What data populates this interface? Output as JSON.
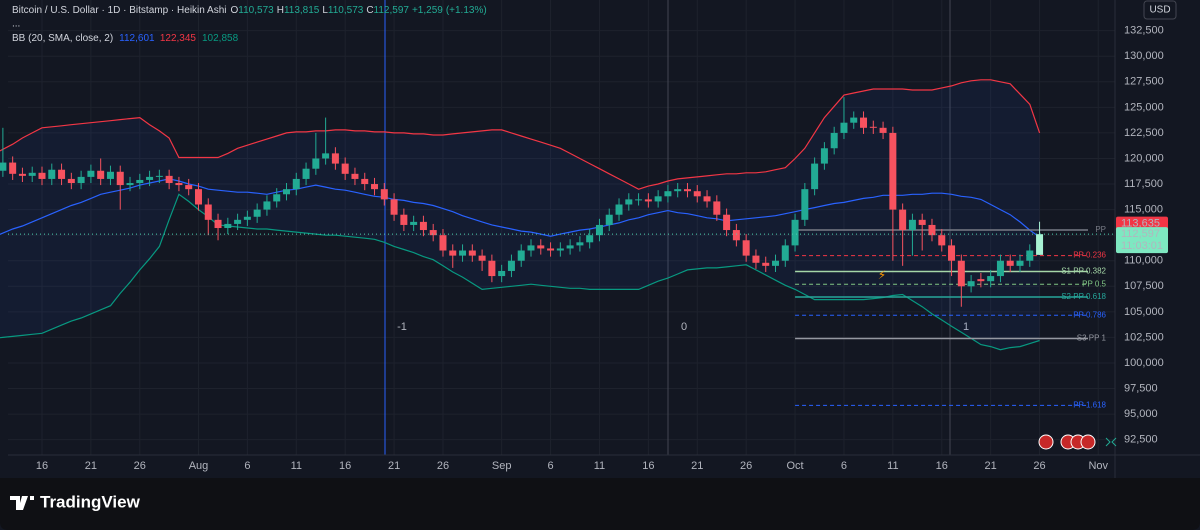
{
  "chart_data": {
    "type": "candlestick",
    "title": "Bitcoin / U.S. Dollar · 1D · Bitstamp · Heikin Ashi",
    "ohlc": [
      {
        "key": "O",
        "value": 110573,
        "label": "110,573"
      },
      {
        "key": "H",
        "value": 113815,
        "label": "113,815"
      },
      {
        "key": "L",
        "value": 110573,
        "label": "110,573"
      },
      {
        "key": "C",
        "value": 112597,
        "label": "112,597"
      }
    ],
    "change": {
      "value": 1259,
      "label": "+1,259"
    },
    "change_pct": {
      "value": 1.13,
      "label": "(+1.13%)"
    },
    "more": "...",
    "currency": "USD",
    "categories": [
      null,
      null,
      null,
      null,
      null,
      "16",
      null,
      null,
      null,
      null,
      "21",
      null,
      null,
      null,
      null,
      "26",
      null,
      null,
      null,
      null,
      null,
      "Aug",
      null,
      null,
      null,
      null,
      "6",
      null,
      null,
      null,
      null,
      "11",
      null,
      null,
      null,
      null,
      "16",
      null,
      null,
      null,
      null,
      "21",
      null,
      null,
      null,
      null,
      "26",
      null,
      null,
      null,
      null,
      null,
      "Sep",
      null,
      null,
      null,
      null,
      "6",
      null,
      null,
      null,
      null,
      "11",
      null,
      null,
      null,
      null,
      "16",
      null,
      null,
      null,
      null,
      "21",
      null,
      null,
      null,
      null,
      "26",
      null,
      null,
      null,
      null,
      "Oct",
      null,
      null,
      null,
      null,
      "6",
      null,
      null,
      null,
      null,
      "11",
      null,
      null,
      null,
      null,
      "16",
      null,
      null,
      null,
      null,
      "21",
      null,
      null,
      null,
      null,
      "26",
      null,
      null,
      null,
      null,
      null,
      "Nov"
    ],
    "open": [
      117500,
      118800,
      119600,
      118500,
      118300,
      118600,
      118000,
      118900,
      118000,
      117600,
      118200,
      118800,
      118000,
      118700,
      117400,
      117600,
      117900,
      118200,
      118300,
      117600,
      117400,
      117000,
      115500,
      114000,
      113200,
      113600,
      114000,
      114300,
      115000,
      115800,
      116500,
      117000,
      118000,
      119000,
      120000,
      120500,
      119500,
      118500,
      118000,
      117500,
      117000,
      116000,
      114500,
      113500,
      113800,
      113000,
      112500,
      111000,
      110500,
      111000,
      110500,
      110000,
      108500,
      109000,
      110000,
      111000,
      111500,
      111200,
      111000,
      111200,
      111500,
      111800,
      112500,
      113500,
      114500,
      115500,
      116000,
      116000,
      115800,
      116300,
      116800,
      117000,
      116800,
      116300,
      115800,
      114500,
      113000,
      112000,
      110500,
      109800,
      109500,
      110000,
      111500,
      114000,
      117000,
      119500,
      121000,
      122500,
      123500,
      124000,
      123100,
      123000,
      122500,
      115000,
      113000,
      114000,
      113500,
      112500,
      111500,
      110000,
      107500,
      108200,
      108000,
      108500,
      110000,
      109500,
      110000,
      110573,
      null,
      null,
      null,
      null,
      null,
      null
    ],
    "high": [
      119500,
      123000,
      120200,
      119100,
      119200,
      119200,
      119500,
      119500,
      118600,
      118800,
      119400,
      120000,
      119300,
      119300,
      118200,
      118500,
      118800,
      118900,
      118900,
      118200,
      118000,
      117600,
      116100,
      114600,
      114200,
      114600,
      114900,
      115600,
      116400,
      117100,
      117600,
      118600,
      119600,
      122500,
      124000,
      121100,
      120100,
      119100,
      118600,
      118100,
      117600,
      116600,
      115100,
      114400,
      114400,
      113600,
      113100,
      111600,
      111600,
      111600,
      111100,
      110600,
      109600,
      110600,
      111600,
      112100,
      112100,
      111800,
      111800,
      112100,
      112400,
      113100,
      114100,
      115100,
      116100,
      116600,
      116600,
      116600,
      116900,
      117400,
      117600,
      117600,
      117400,
      116900,
      116400,
      115100,
      113600,
      112600,
      111100,
      110400,
      110600,
      112100,
      114600,
      117600,
      120100,
      121600,
      123100,
      126000,
      124600,
      124600,
      123700,
      123600,
      123100,
      115600,
      114600,
      114600,
      114100,
      113100,
      112100,
      110600,
      108600,
      108800,
      109100,
      110600,
      110600,
      110600,
      111600,
      113815,
      null,
      null,
      null,
      null,
      null,
      null
    ],
    "low": [
      116900,
      118200,
      117900,
      117700,
      117700,
      117400,
      117400,
      117400,
      117000,
      117000,
      117600,
      117400,
      117400,
      115000,
      116800,
      117000,
      117300,
      117600,
      117000,
      116800,
      116400,
      114900,
      112500,
      112000,
      112600,
      113000,
      113400,
      113700,
      114400,
      115200,
      115900,
      116400,
      117400,
      118400,
      119400,
      118900,
      117900,
      117400,
      116900,
      116400,
      115400,
      113900,
      112900,
      112900,
      112400,
      111900,
      110400,
      109300,
      109900,
      109900,
      109000,
      107900,
      107900,
      108400,
      109400,
      110400,
      110600,
      110400,
      110400,
      110600,
      110900,
      111200,
      111900,
      112900,
      113900,
      114900,
      115400,
      115200,
      115200,
      115700,
      116200,
      116200,
      115700,
      115200,
      113900,
      112400,
      111400,
      109900,
      109200,
      108900,
      108900,
      109400,
      110900,
      113400,
      116400,
      118900,
      120400,
      121900,
      122900,
      122400,
      122400,
      121900,
      110000,
      109500,
      110500,
      111000,
      111900,
      110900,
      108500,
      105500,
      106900,
      107400,
      107400,
      107900,
      108900,
      108900,
      109400,
      110573,
      null,
      null,
      null,
      null,
      null,
      null
    ],
    "close": [
      118800,
      119600,
      118500,
      118300,
      118600,
      118000,
      118900,
      118000,
      117600,
      118200,
      118800,
      118000,
      118700,
      117400,
      117600,
      117900,
      118200,
      118300,
      117600,
      117400,
      117000,
      115500,
      114000,
      113200,
      113600,
      114000,
      114300,
      115000,
      115800,
      116500,
      117000,
      118000,
      119000,
      120000,
      120500,
      119500,
      118500,
      118000,
      117500,
      117000,
      116000,
      114500,
      113500,
      113800,
      113000,
      112500,
      111000,
      110500,
      111000,
      110500,
      110000,
      108500,
      109000,
      110000,
      111000,
      111500,
      111200,
      111000,
      111200,
      111500,
      111800,
      112500,
      113500,
      114500,
      115500,
      116000,
      116000,
      115800,
      116300,
      116800,
      117000,
      116800,
      116300,
      115800,
      114500,
      113000,
      112000,
      110500,
      109800,
      109500,
      110000,
      111500,
      114000,
      117000,
      119500,
      121000,
      122500,
      123500,
      124000,
      123000,
      123000,
      122500,
      115000,
      113000,
      114000,
      113500,
      112500,
      111500,
      110000,
      107500,
      108000,
      108000,
      108500,
      110000,
      109500,
      110000,
      111000,
      112597,
      null,
      null,
      null,
      null,
      null,
      null
    ],
    "up_color": "#22ab94",
    "down_color": "#f7525f",
    "current_bar_color": "#a8f2d4",
    "indicator": {
      "name": "BB (20, SMA, close, 2)",
      "fill_color": "#2962ff",
      "series": [
        {
          "color": "#2962ff",
          "legend": {
            "value": 112601,
            "label": "112,601"
          },
          "values": [
            112300,
            112700,
            113100,
            113400,
            113800,
            114200,
            114600,
            115000,
            115400,
            115700,
            116100,
            116500,
            116700,
            116900,
            117100,
            117400,
            117600,
            117800,
            118000,
            117800,
            117500,
            117300,
            117000,
            116900,
            116800,
            116700,
            116700,
            116600,
            116500,
            116700,
            116900,
            117000,
            117200,
            117400,
            117200,
            117000,
            116900,
            116700,
            116500,
            116300,
            116200,
            116000,
            115900,
            115700,
            115600,
            115400,
            115100,
            114800,
            114400,
            114100,
            113800,
            113500,
            113300,
            113100,
            112900,
            112800,
            112600,
            112400,
            112600,
            112800,
            113000,
            113100,
            113300,
            113500,
            113700,
            114000,
            114200,
            114500,
            114700,
            114900,
            114700,
            114600,
            114400,
            114200,
            114100,
            113900,
            114000,
            114100,
            114200,
            114300,
            114400,
            114600,
            114800,
            115000,
            115200,
            115400,
            115600,
            115700,
            115900,
            116100,
            116200,
            116400,
            116400,
            116400,
            116500,
            116500,
            116600,
            116600,
            116500,
            116300,
            116200,
            116000,
            115500,
            115000,
            114500,
            113800,
            113000,
            112300,
            null,
            null,
            null,
            null,
            null,
            null
          ]
        },
        {
          "color": "#f23645",
          "legend": {
            "value": 122345,
            "label": "122,345"
          },
          "values": [
            120400,
            120900,
            121400,
            122000,
            122500,
            123000,
            123100,
            123200,
            123300,
            123400,
            123500,
            123600,
            123700,
            123800,
            123900,
            124000,
            123300,
            122700,
            122000,
            120100,
            120100,
            120100,
            120100,
            120100,
            120500,
            121000,
            121300,
            121600,
            121900,
            122200,
            122500,
            122600,
            122600,
            122700,
            122700,
            122800,
            122800,
            122700,
            122700,
            122600,
            122600,
            122500,
            122500,
            122400,
            122400,
            122300,
            122300,
            122400,
            122500,
            122600,
            122700,
            122800,
            122800,
            122500,
            122200,
            121900,
            121600,
            121300,
            121000,
            120500,
            120000,
            119500,
            119000,
            118500,
            118000,
            117500,
            117000,
            117300,
            117500,
            117800,
            118000,
            118100,
            118200,
            118300,
            118400,
            118500,
            118500,
            118600,
            118600,
            118700,
            118900,
            119100,
            120000,
            121000,
            122500,
            124000,
            125100,
            126200,
            126400,
            126600,
            126800,
            126800,
            126800,
            126800,
            126700,
            126700,
            126700,
            126900,
            127100,
            127400,
            127600,
            127700,
            127700,
            127500,
            127300,
            126300,
            125300,
            122500,
            null,
            null,
            null,
            null,
            null,
            null
          ]
        },
        {
          "color": "#089981",
          "legend": {
            "value": 102858,
            "label": "102,858"
          },
          "values": [
            102400,
            102500,
            102600,
            102700,
            102800,
            102900,
            103300,
            103700,
            104100,
            104400,
            104800,
            105200,
            105600,
            106800,
            107900,
            109100,
            110200,
            111400,
            114000,
            116500,
            115800,
            115000,
            114300,
            113500,
            113400,
            113300,
            113200,
            113100,
            113100,
            113000,
            112900,
            112800,
            112700,
            112600,
            112500,
            112500,
            112400,
            112300,
            112200,
            112100,
            111800,
            111400,
            111100,
            110800,
            110400,
            110100,
            109500,
            108900,
            108400,
            107800,
            107200,
            107300,
            107400,
            107500,
            107600,
            107700,
            107600,
            107500,
            107400,
            107300,
            107300,
            107200,
            107200,
            107200,
            107200,
            107200,
            107200,
            107600,
            108000,
            108300,
            108700,
            109100,
            109200,
            109300,
            109300,
            109400,
            109500,
            109600,
            109100,
            108600,
            108100,
            107600,
            107200,
            106700,
            106200,
            106200,
            106200,
            106200,
            106200,
            106200,
            106300,
            106400,
            106600,
            106700,
            106100,
            105500,
            104800,
            104200,
            103600,
            103000,
            102400,
            101800,
            101600,
            101300,
            101500,
            101600,
            101900,
            102200,
            null,
            null,
            null,
            null,
            null,
            null
          ]
        }
      ]
    },
    "pivots": [
      {
        "label": "PP",
        "value": 113000,
        "color": "#787b86",
        "dashed": false
      },
      {
        "label": "PP 0.236",
        "value": 110500,
        "color": "#f23645",
        "dashed": true
      },
      {
        "label": "S1 PP 0.382",
        "value": 108950,
        "color": "#a5d6a7",
        "dashed": false
      },
      {
        "label": "PP 0.5",
        "value": 107700,
        "color": "#81c784",
        "dashed": true
      },
      {
        "label": "S2 PP 0.618",
        "value": 106450,
        "color": "#26a69a",
        "dashed": false
      },
      {
        "label": "PP 0.786",
        "value": 104670,
        "color": "#2962ff",
        "dashed": true
      },
      {
        "label": "S3 PP 1",
        "value": 102400,
        "color": "#9598a1",
        "dashed": false
      },
      {
        "label": "PP 1.618",
        "value": 95850,
        "color": "#2962ff",
        "dashed": true
      }
    ],
    "price_tags": [
      {
        "value": 113635,
        "label": "113,635",
        "color": "#f23645"
      },
      {
        "value": 112597,
        "label": "112,597",
        "sub": "11:03:01",
        "color": "#7ee8c1"
      }
    ],
    "annotations": [
      "-1",
      "0",
      "1"
    ],
    "ylim": [
      91000,
      135500
    ],
    "yticks": [
      {
        "value": 92500,
        "label": "92,500"
      },
      {
        "value": 95000,
        "label": "95,000"
      },
      {
        "value": 97500,
        "label": "97,500"
      },
      {
        "value": 100000,
        "label": "100,000"
      },
      {
        "value": 102500,
        "label": "102,500"
      },
      {
        "value": 105000,
        "label": "105,000"
      },
      {
        "value": 107500,
        "label": "107,500"
      },
      {
        "value": 110000,
        "label": "110,000"
      },
      {
        "value": 112500,
        "label": "112,500"
      },
      {
        "value": 115000,
        "label": "115,000"
      },
      {
        "value": 117500,
        "label": "117,500"
      },
      {
        "value": 120000,
        "label": "120,000"
      },
      {
        "value": 122500,
        "label": "122,500"
      },
      {
        "value": 125000,
        "label": "125,000"
      },
      {
        "value": 127500,
        "label": "127,500"
      },
      {
        "value": 130000,
        "label": "130,000"
      },
      {
        "value": 132500,
        "label": "132,500"
      }
    ],
    "grid": true,
    "footer_brand": "TradingView"
  }
}
